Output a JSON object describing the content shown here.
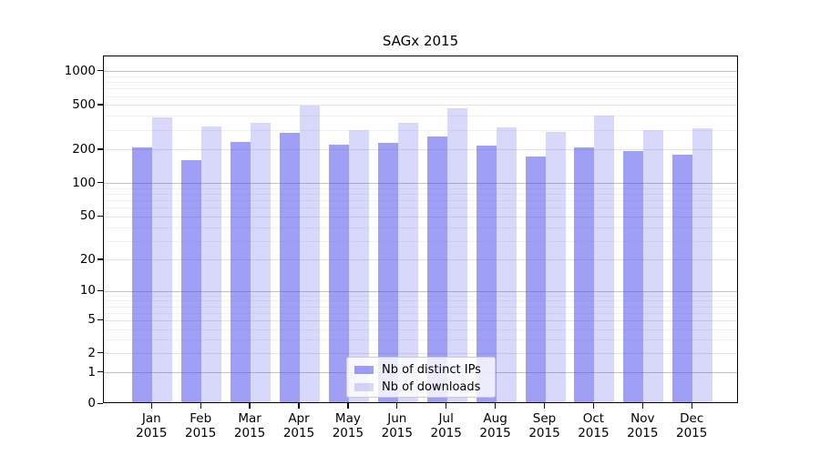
{
  "title": "SAGx 2015",
  "chart_data": {
    "type": "bar",
    "title": "SAGx 2015",
    "categories": [
      {
        "month": "Jan",
        "year": "2015"
      },
      {
        "month": "Feb",
        "year": "2015"
      },
      {
        "month": "Mar",
        "year": "2015"
      },
      {
        "month": "Apr",
        "year": "2015"
      },
      {
        "month": "May",
        "year": "2015"
      },
      {
        "month": "Jun",
        "year": "2015"
      },
      {
        "month": "Jul",
        "year": "2015"
      },
      {
        "month": "Aug",
        "year": "2015"
      },
      {
        "month": "Sep",
        "year": "2015"
      },
      {
        "month": "Oct",
        "year": "2015"
      },
      {
        "month": "Nov",
        "year": "2015"
      },
      {
        "month": "Dec",
        "year": "2015"
      }
    ],
    "series": [
      {
        "name": "Nb of distinct IPs",
        "color": "rgba(70,70,235,0.52)",
        "values": [
          208,
          162,
          233,
          281,
          222,
          229,
          263,
          218,
          173,
          208,
          193,
          181
        ]
      },
      {
        "name": "Nb of downloads",
        "color": "rgba(70,70,235,0.21)",
        "values": [
          390,
          324,
          345,
          493,
          298,
          348,
          469,
          315,
          285,
          405,
          300,
          308
        ]
      }
    ],
    "y_ticks": [
      0,
      1,
      2,
      5,
      10,
      20,
      50,
      100,
      200,
      500,
      1000
    ],
    "yscale": "symlog",
    "ylim": [
      0,
      1400
    ],
    "grid": true,
    "legend_position": "lower center",
    "grid_colors": {
      "major_power10": "#c3c3c3",
      "labeled_minor": "#e3e3e3",
      "unlabeled_minor": "#f2f2f2"
    }
  }
}
